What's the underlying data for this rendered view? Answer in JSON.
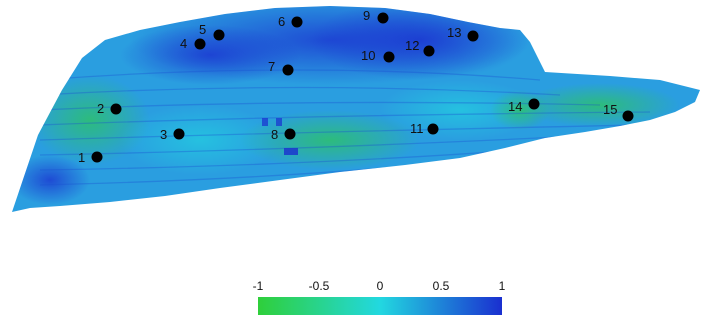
{
  "colors": {
    "low": "#2fcf3a",
    "mid": "#22d8e0",
    "high": "#1a2fd0",
    "base_field": "#2a9ee0",
    "marker": "#000000"
  },
  "colorbar": {
    "min": -1,
    "max": 1,
    "ticks": [
      {
        "value": -1,
        "label": "-1"
      },
      {
        "value": -0.5,
        "label": "-0.5"
      },
      {
        "value": 0,
        "label": "0"
      },
      {
        "value": 0.5,
        "label": "0.5"
      },
      {
        "value": 1,
        "label": "1"
      }
    ]
  },
  "points": [
    {
      "label": "1"
    },
    {
      "label": "2"
    },
    {
      "label": "3"
    },
    {
      "label": "4"
    },
    {
      "label": "5"
    },
    {
      "label": "6"
    },
    {
      "label": "7"
    },
    {
      "label": "8"
    },
    {
      "label": "9"
    },
    {
      "label": "10"
    },
    {
      "label": "11"
    },
    {
      "label": "12"
    },
    {
      "label": "13"
    },
    {
      "label": "14"
    },
    {
      "label": "15"
    }
  ]
}
